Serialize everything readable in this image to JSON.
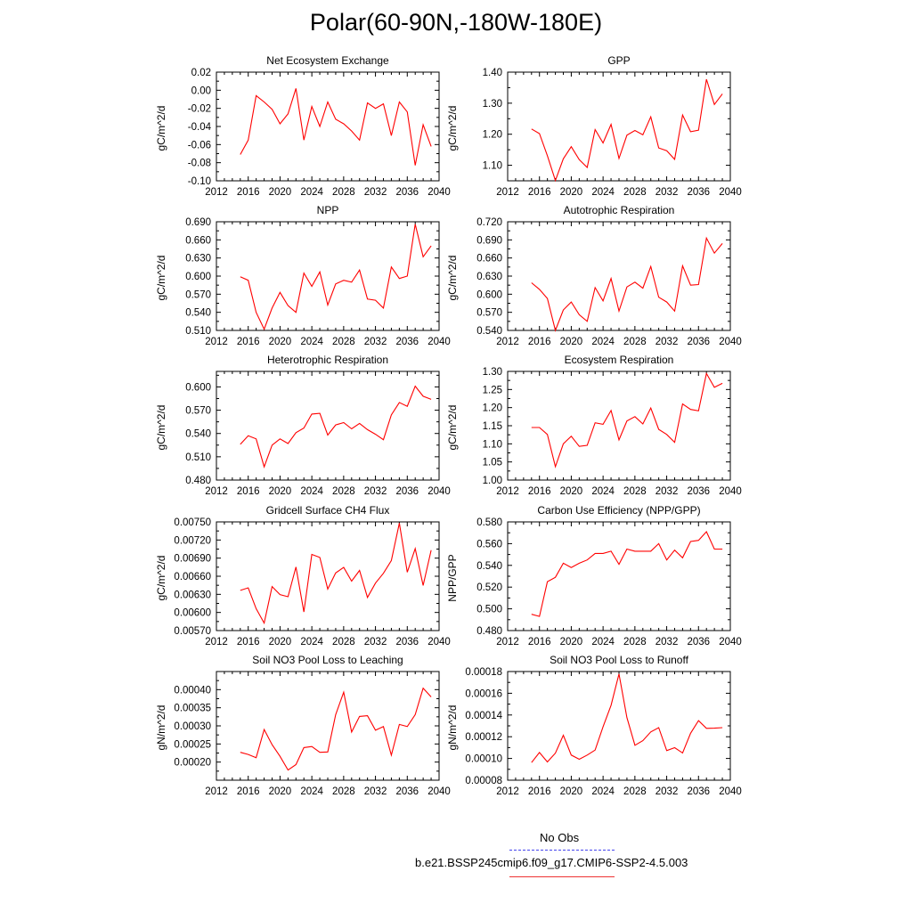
{
  "title": "Polar(60-90N,-180W-180E)",
  "legend": {
    "entries": [
      {
        "label": "No Obs",
        "color": "#4444ee",
        "dash": true
      },
      {
        "label": "b.e21.BSSP245cmip6.f09_g17.CMIP6-SSP2-4.5.003",
        "color": "#ee3333",
        "dash": false
      }
    ]
  },
  "chart_data": [
    {
      "type": "line",
      "title": "Net Ecosystem Exchange",
      "ylabel": "gC/m^2/d",
      "xlim": [
        2012,
        2040
      ],
      "xticks": [
        2012,
        2016,
        2020,
        2024,
        2028,
        2032,
        2036,
        2040
      ],
      "ylim": [
        -0.1,
        0.02
      ],
      "yticks": [
        -0.1,
        -0.08,
        -0.06,
        -0.04,
        -0.02,
        0.0,
        0.02
      ],
      "ytick_labels": [
        "-0.10",
        "-0.08",
        "-0.06",
        "-0.04",
        "-0.02",
        "0.00",
        "0.02"
      ],
      "x": [
        2015,
        2016,
        2017,
        2018,
        2019,
        2020,
        2021,
        2022,
        2023,
        2024,
        2025,
        2026,
        2027,
        2028,
        2029,
        2030,
        2031,
        2032,
        2033,
        2034,
        2035,
        2036,
        2037,
        2038,
        2039
      ],
      "series": [
        {
          "name": "b.e21.BSSP245cmip6.f09_g17.CMIP6-SSP2-4.5.003",
          "color": "#ff0000",
          "values": [
            -0.071,
            -0.055,
            -0.006,
            -0.013,
            -0.021,
            -0.037,
            -0.026,
            0.002,
            -0.055,
            -0.018,
            -0.04,
            -0.013,
            -0.032,
            -0.037,
            -0.045,
            -0.055,
            -0.014,
            -0.02,
            -0.015,
            -0.05,
            -0.013,
            -0.024,
            -0.083,
            -0.038,
            -0.062
          ]
        }
      ]
    },
    {
      "type": "line",
      "title": "GPP",
      "ylabel": "gC/m^2/d",
      "xlim": [
        2012,
        2040
      ],
      "xticks": [
        2012,
        2016,
        2020,
        2024,
        2028,
        2032,
        2036,
        2040
      ],
      "ylim": [
        1.05,
        1.4
      ],
      "yticks": [
        1.1,
        1.2,
        1.3,
        1.4
      ],
      "ytick_labels": [
        "1.10",
        "1.20",
        "1.30",
        "1.40"
      ],
      "x": [
        2015,
        2016,
        2017,
        2018,
        2019,
        2020,
        2021,
        2022,
        2023,
        2024,
        2025,
        2026,
        2027,
        2028,
        2029,
        2030,
        2031,
        2032,
        2033,
        2034,
        2035,
        2036,
        2037,
        2038,
        2039
      ],
      "series": [
        {
          "name": "b.e21.BSSP245cmip6.f09_g17.CMIP6-SSP2-4.5.003",
          "color": "#ff0000",
          "values": [
            1.217,
            1.202,
            1.131,
            1.051,
            1.121,
            1.16,
            1.118,
            1.093,
            1.215,
            1.172,
            1.232,
            1.122,
            1.197,
            1.212,
            1.198,
            1.256,
            1.156,
            1.147,
            1.119,
            1.262,
            1.208,
            1.213,
            1.377,
            1.296,
            1.33
          ]
        }
      ]
    },
    {
      "type": "line",
      "title": "NPP",
      "ylabel": "gC/m^2/d",
      "xlim": [
        2012,
        2040
      ],
      "xticks": [
        2012,
        2016,
        2020,
        2024,
        2028,
        2032,
        2036,
        2040
      ],
      "ylim": [
        0.51,
        0.69
      ],
      "yticks": [
        0.51,
        0.54,
        0.57,
        0.6,
        0.63,
        0.66,
        0.69
      ],
      "ytick_labels": [
        "0.510",
        "0.540",
        "0.570",
        "0.600",
        "0.630",
        "0.660",
        "0.690"
      ],
      "x": [
        2015,
        2016,
        2017,
        2018,
        2019,
        2020,
        2021,
        2022,
        2023,
        2024,
        2025,
        2026,
        2027,
        2028,
        2029,
        2030,
        2031,
        2032,
        2033,
        2034,
        2035,
        2036,
        2037,
        2038,
        2039
      ],
      "series": [
        {
          "name": "b.e21.BSSP245cmip6.f09_g17.CMIP6-SSP2-4.5.003",
          "color": "#ff0000",
          "values": [
            0.599,
            0.593,
            0.54,
            0.512,
            0.547,
            0.573,
            0.551,
            0.54,
            0.605,
            0.583,
            0.607,
            0.552,
            0.587,
            0.593,
            0.59,
            0.61,
            0.562,
            0.56,
            0.547,
            0.615,
            0.596,
            0.6,
            0.686,
            0.632,
            0.65
          ]
        }
      ]
    },
    {
      "type": "line",
      "title": "Autotrophic Respiration",
      "ylabel": "gC/m^2/d",
      "xlim": [
        2012,
        2040
      ],
      "xticks": [
        2012,
        2016,
        2020,
        2024,
        2028,
        2032,
        2036,
        2040
      ],
      "ylim": [
        0.54,
        0.72
      ],
      "yticks": [
        0.54,
        0.57,
        0.6,
        0.63,
        0.66,
        0.69,
        0.72
      ],
      "ytick_labels": [
        "0.540",
        "0.570",
        "0.600",
        "0.630",
        "0.660",
        "0.690",
        "0.720"
      ],
      "x": [
        2015,
        2016,
        2017,
        2018,
        2019,
        2020,
        2021,
        2022,
        2023,
        2024,
        2025,
        2026,
        2027,
        2028,
        2029,
        2030,
        2031,
        2032,
        2033,
        2034,
        2035,
        2036,
        2037,
        2038,
        2039
      ],
      "series": [
        {
          "name": "b.e21.BSSP245cmip6.f09_g17.CMIP6-SSP2-4.5.003",
          "color": "#ff0000",
          "values": [
            0.619,
            0.608,
            0.593,
            0.54,
            0.574,
            0.587,
            0.566,
            0.555,
            0.611,
            0.589,
            0.626,
            0.572,
            0.612,
            0.62,
            0.61,
            0.646,
            0.595,
            0.587,
            0.572,
            0.647,
            0.615,
            0.616,
            0.693,
            0.668,
            0.684
          ]
        }
      ]
    },
    {
      "type": "line",
      "title": "Heterotrophic Respiration",
      "ylabel": "gC/m^2/d",
      "xlim": [
        2012,
        2040
      ],
      "xticks": [
        2012,
        2016,
        2020,
        2024,
        2028,
        2032,
        2036,
        2040
      ],
      "ylim": [
        0.48,
        0.62
      ],
      "yticks": [
        0.48,
        0.51,
        0.54,
        0.57,
        0.6
      ],
      "ytick_labels": [
        "0.480",
        "0.510",
        "0.540",
        "0.570",
        "0.600"
      ],
      "x": [
        2015,
        2016,
        2017,
        2018,
        2019,
        2020,
        2021,
        2022,
        2023,
        2024,
        2025,
        2026,
        2027,
        2028,
        2029,
        2030,
        2031,
        2032,
        2033,
        2034,
        2035,
        2036,
        2037,
        2038,
        2039
      ],
      "series": [
        {
          "name": "b.e21.BSSP245cmip6.f09_g17.CMIP6-SSP2-4.5.003",
          "color": "#ff0000",
          "values": [
            0.526,
            0.537,
            0.533,
            0.497,
            0.525,
            0.533,
            0.527,
            0.541,
            0.547,
            0.565,
            0.566,
            0.538,
            0.551,
            0.554,
            0.546,
            0.553,
            0.545,
            0.539,
            0.532,
            0.564,
            0.58,
            0.575,
            0.601,
            0.588,
            0.584
          ]
        }
      ]
    },
    {
      "type": "line",
      "title": "Ecosystem Respiration",
      "ylabel": "gC/m^2/d",
      "xlim": [
        2012,
        2040
      ],
      "xticks": [
        2012,
        2016,
        2020,
        2024,
        2028,
        2032,
        2036,
        2040
      ],
      "ylim": [
        1.0,
        1.3
      ],
      "yticks": [
        1.0,
        1.05,
        1.1,
        1.15,
        1.2,
        1.25,
        1.3
      ],
      "ytick_labels": [
        "1.00",
        "1.05",
        "1.10",
        "1.15",
        "1.20",
        "1.25",
        "1.30"
      ],
      "x": [
        2015,
        2016,
        2017,
        2018,
        2019,
        2020,
        2021,
        2022,
        2023,
        2024,
        2025,
        2026,
        2027,
        2028,
        2029,
        2030,
        2031,
        2032,
        2033,
        2034,
        2035,
        2036,
        2037,
        2038,
        2039
      ],
      "series": [
        {
          "name": "b.e21.BSSP245cmip6.f09_g17.CMIP6-SSP2-4.5.003",
          "color": "#ff0000",
          "values": [
            1.145,
            1.145,
            1.126,
            1.037,
            1.1,
            1.121,
            1.093,
            1.096,
            1.158,
            1.154,
            1.192,
            1.111,
            1.163,
            1.175,
            1.155,
            1.199,
            1.14,
            1.126,
            1.104,
            1.21,
            1.195,
            1.191,
            1.294,
            1.256,
            1.267
          ]
        }
      ]
    },
    {
      "type": "line",
      "title": "Gridcell Surface CH4 Flux",
      "ylabel": "gC/m^2/d",
      "xlim": [
        2012,
        2040
      ],
      "xticks": [
        2012,
        2016,
        2020,
        2024,
        2028,
        2032,
        2036,
        2040
      ],
      "ylim": [
        0.0057,
        0.0075
      ],
      "yticks": [
        0.0057,
        0.006,
        0.0063,
        0.0066,
        0.0069,
        0.0072,
        0.0075
      ],
      "ytick_labels": [
        "0.00570",
        "0.00600",
        "0.00630",
        "0.00660",
        "0.00690",
        "0.00720",
        "0.00750"
      ],
      "x": [
        2015,
        2016,
        2017,
        2018,
        2019,
        2020,
        2021,
        2022,
        2023,
        2024,
        2025,
        2026,
        2027,
        2028,
        2029,
        2030,
        2031,
        2032,
        2033,
        2034,
        2035,
        2036,
        2037,
        2038,
        2039
      ],
      "series": [
        {
          "name": "b.e21.BSSP245cmip6.f09_g17.CMIP6-SSP2-4.5.003",
          "color": "#ff0000",
          "values": [
            0.006366,
            0.006408,
            0.006063,
            0.005824,
            0.006429,
            0.006296,
            0.006261,
            0.006753,
            0.006009,
            0.006961,
            0.006911,
            0.006388,
            0.006654,
            0.006746,
            0.006519,
            0.006696,
            0.006249,
            0.006487,
            0.006648,
            0.00686,
            0.007479,
            0.006667,
            0.007057,
            0.006446,
            0.007032
          ]
        }
      ]
    },
    {
      "type": "line",
      "title": "Carbon Use Efficiency (NPP/GPP)",
      "ylabel": "NPP/GPP",
      "xlim": [
        2012,
        2040
      ],
      "xticks": [
        2012,
        2016,
        2020,
        2024,
        2028,
        2032,
        2036,
        2040
      ],
      "ylim": [
        0.48,
        0.58
      ],
      "yticks": [
        0.48,
        0.5,
        0.52,
        0.54,
        0.56,
        0.58
      ],
      "ytick_labels": [
        "0.480",
        "0.500",
        "0.520",
        "0.540",
        "0.560",
        "0.580"
      ],
      "x": [
        2015,
        2016,
        2017,
        2018,
        2019,
        2020,
        2021,
        2022,
        2023,
        2024,
        2025,
        2026,
        2027,
        2028,
        2029,
        2030,
        2031,
        2032,
        2033,
        2034,
        2035,
        2036,
        2037,
        2038,
        2039
      ],
      "series": [
        {
          "name": "b.e21.BSSP245cmip6.f09_g17.CMIP6-SSP2-4.5.003",
          "color": "#ff0000",
          "values": [
            0.495,
            0.493,
            0.525,
            0.529,
            0.542,
            0.538,
            0.542,
            0.545,
            0.551,
            0.551,
            0.553,
            0.541,
            0.555,
            0.553,
            0.553,
            0.553,
            0.56,
            0.545,
            0.554,
            0.547,
            0.562,
            0.563,
            0.571,
            0.555,
            0.555
          ]
        }
      ]
    },
    {
      "type": "line",
      "title": "Soil NO3 Pool Loss to Leaching",
      "ylabel": "gN/m^2/d",
      "xlim": [
        2012,
        2040
      ],
      "xticks": [
        2012,
        2016,
        2020,
        2024,
        2028,
        2032,
        2036,
        2040
      ],
      "ylim": [
        0.00015,
        0.00045
      ],
      "yticks": [
        0.0002,
        0.00025,
        0.0003,
        0.00035,
        0.0004
      ],
      "ytick_labels": [
        "0.00020",
        "0.00025",
        "0.00030",
        "0.00035",
        "0.00040"
      ],
      "x": [
        2015,
        2016,
        2017,
        2018,
        2019,
        2020,
        2021,
        2022,
        2023,
        2024,
        2025,
        2026,
        2027,
        2028,
        2029,
        2030,
        2031,
        2032,
        2033,
        2034,
        2035,
        2036,
        2037,
        2038,
        2039
      ],
      "series": [
        {
          "name": "b.e21.BSSP245cmip6.f09_g17.CMIP6-SSP2-4.5.003",
          "color": "#ff0000",
          "values": [
            0.000227,
            0.000221,
            0.000212,
            0.00029,
            0.000248,
            0.000216,
            0.000178,
            0.000193,
            0.00024,
            0.000243,
            0.000227,
            0.000228,
            0.000331,
            0.000393,
            0.000283,
            0.000326,
            0.000328,
            0.000288,
            0.000298,
            0.000219,
            0.000304,
            0.000298,
            0.000331,
            0.000404,
            0.00038
          ]
        }
      ]
    },
    {
      "type": "line",
      "title": "Soil NO3 Pool Loss to Runoff",
      "ylabel": "gN/m^2/d",
      "xlim": [
        2012,
        2040
      ],
      "xticks": [
        2012,
        2016,
        2020,
        2024,
        2028,
        2032,
        2036,
        2040
      ],
      "ylim": [
        8e-05,
        0.00018
      ],
      "yticks": [
        8e-05,
        0.0001,
        0.00012,
        0.00014,
        0.00016,
        0.00018
      ],
      "ytick_labels": [
        "0.00008",
        "0.00010",
        "0.00012",
        "0.00014",
        "0.00016",
        "0.00018"
      ],
      "x": [
        2015,
        2016,
        2017,
        2018,
        2019,
        2020,
        2021,
        2022,
        2023,
        2024,
        2025,
        2026,
        2027,
        2028,
        2029,
        2030,
        2031,
        2032,
        2033,
        2034,
        2035,
        2036,
        2037,
        2038,
        2039
      ],
      "series": [
        {
          "name": "b.e21.BSSP245cmip6.f09_g17.CMIP6-SSP2-4.5.003",
          "color": "#ff0000",
          "values": [
            9.62e-05,
            0.0001055,
            9.68e-05,
            0.0001049,
            0.0001214,
            0.0001031,
            9.93e-05,
            0.0001031,
            0.0001077,
            0.0001291,
            0.0001489,
            0.0001778,
            0.0001376,
            0.0001121,
            0.0001164,
            0.0001244,
            0.0001284,
            0.0001072,
            0.0001099,
            0.0001051,
            0.0001232,
            0.0001348,
            0.0001277,
            0.0001279,
            0.0001284
          ]
        }
      ]
    }
  ]
}
